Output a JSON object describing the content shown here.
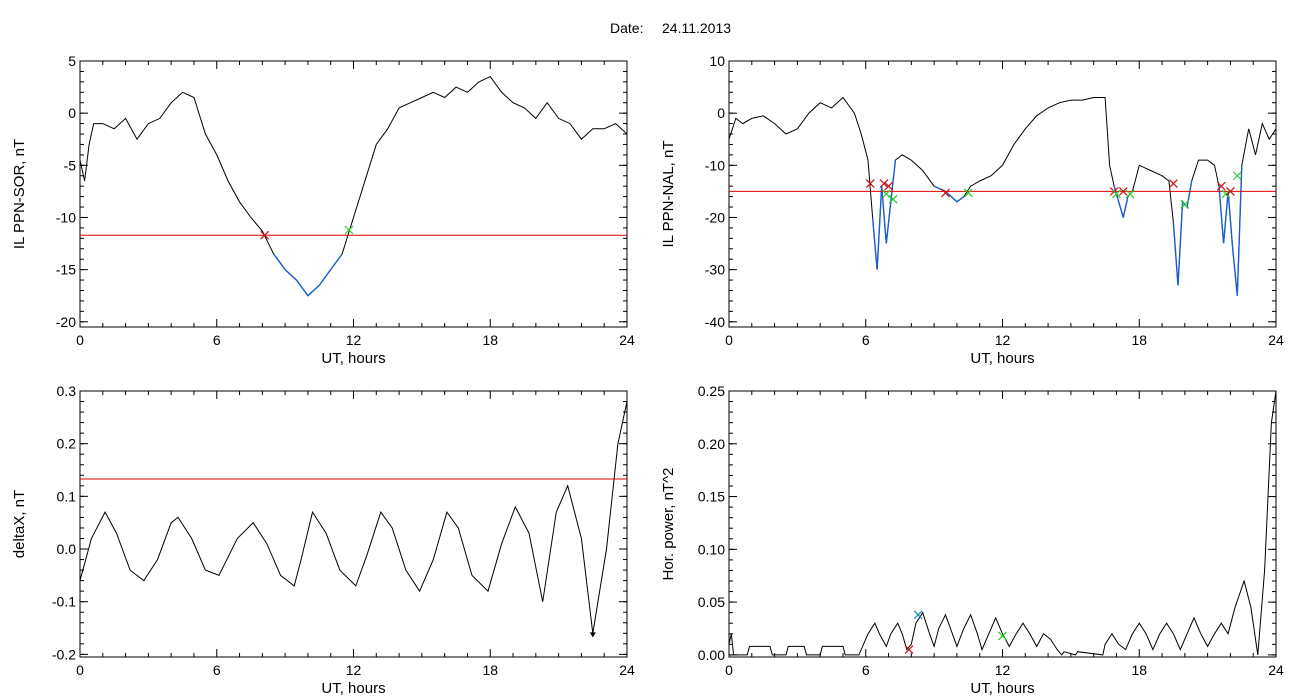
{
  "figure": {
    "title_label": "Date:",
    "title_date": "24.11.2013"
  },
  "colors": {
    "axes": "#000000",
    "trace": "#000000",
    "below_threshold": "#1a5fd0",
    "threshold_line": "#e00000",
    "marker_start": "#d01010",
    "marker_end": "#22cc22",
    "marker_peak": "#1a8cb0"
  },
  "chart_data": [
    {
      "id": "ppn-sor",
      "type": "line",
      "xlabel": "UT, hours",
      "ylabel": "IL PPN-SOR, nT",
      "xlim": [
        0,
        24
      ],
      "ylim": [
        -20.5,
        5
      ],
      "xticks": [
        0,
        6,
        12,
        18,
        24
      ],
      "yticks": [
        5,
        0,
        -5,
        -10,
        -15,
        -20
      ],
      "threshold": -11.7,
      "below_segments": [
        [
          8.1,
          11.8
        ]
      ],
      "x": [
        0,
        0.2,
        0.4,
        0.6,
        1.0,
        1.5,
        2.0,
        2.5,
        3.0,
        3.5,
        4.0,
        4.5,
        5.0,
        5.5,
        6.0,
        6.5,
        7.0,
        7.5,
        8.0,
        8.5,
        9.0,
        9.5,
        10.0,
        10.5,
        11.0,
        11.5,
        12.0,
        12.5,
        13.0,
        13.5,
        14.0,
        14.5,
        15.0,
        15.5,
        16.0,
        16.5,
        17.0,
        17.5,
        18.0,
        18.5,
        19.0,
        19.5,
        20.0,
        20.5,
        21.0,
        21.5,
        22.0,
        22.5,
        23.0,
        23.5,
        24.0
      ],
      "y": [
        -4.5,
        -6.5,
        -3.0,
        -1.0,
        -1.0,
        -1.5,
        -0.5,
        -2.5,
        -1.0,
        -0.5,
        1.0,
        2.0,
        1.5,
        -2.0,
        -4.0,
        -6.5,
        -8.5,
        -10.0,
        -11.3,
        -13.5,
        -15.0,
        -16.0,
        -17.5,
        -16.5,
        -15.0,
        -13.5,
        -10.0,
        -6.5,
        -3.0,
        -1.5,
        0.5,
        1.0,
        1.5,
        2.0,
        1.5,
        2.5,
        2.0,
        3.0,
        3.5,
        2.0,
        1.0,
        0.5,
        -0.5,
        1.0,
        -0.5,
        -1.0,
        -2.5,
        -1.5,
        -1.5,
        -1.0,
        -2.0
      ],
      "markers": [
        {
          "kind": "start",
          "x": 8.1,
          "y": -11.7
        },
        {
          "kind": "end",
          "x": 11.8,
          "y": -11.2
        }
      ]
    },
    {
      "id": "ppn-nal",
      "type": "line",
      "xlabel": "UT, hours",
      "ylabel": "IL PPN-NAL, nT",
      "xlim": [
        0,
        24
      ],
      "ylim": [
        -41,
        10
      ],
      "xticks": [
        0,
        6,
        12,
        18,
        24
      ],
      "yticks": [
        10,
        0,
        -10,
        -20,
        -30,
        -40
      ],
      "threshold": -15,
      "below_segments": [
        [
          6.3,
          7.3
        ],
        [
          9.0,
          10.5
        ],
        [
          16.9,
          17.7
        ],
        [
          19.4,
          20.3
        ],
        [
          21.5,
          22.5
        ]
      ],
      "x": [
        0,
        0.3,
        0.6,
        1.0,
        1.5,
        2.0,
        2.5,
        3.0,
        3.5,
        4.0,
        4.5,
        5.0,
        5.5,
        5.8,
        6.1,
        6.3,
        6.5,
        6.7,
        6.9,
        7.1,
        7.3,
        7.6,
        8.0,
        8.5,
        9.0,
        9.5,
        10.0,
        10.3,
        10.6,
        11.0,
        11.5,
        12.0,
        12.5,
        13.0,
        13.5,
        14.0,
        14.5,
        15.0,
        15.5,
        16.0,
        16.5,
        16.7,
        16.9,
        17.1,
        17.3,
        17.5,
        17.7,
        18.0,
        18.5,
        19.0,
        19.3,
        19.5,
        19.7,
        19.9,
        20.1,
        20.3,
        20.6,
        21.0,
        21.3,
        21.5,
        21.7,
        21.9,
        22.1,
        22.3,
        22.5,
        22.8,
        23.1,
        23.4,
        23.7,
        24.0
      ],
      "y": [
        -5,
        -1,
        -2,
        -1,
        -0.5,
        -2,
        -4,
        -3,
        0,
        2,
        1,
        3,
        0,
        -4,
        -9,
        -20,
        -30,
        -14,
        -25,
        -17,
        -9,
        -8,
        -9,
        -11,
        -14,
        -15,
        -17,
        -16,
        -14,
        -13,
        -12,
        -10,
        -6,
        -3,
        -0.5,
        1,
        2,
        2.5,
        2.5,
        3,
        3,
        -10,
        -14,
        -17,
        -20,
        -16,
        -15,
        -10,
        -11,
        -12,
        -13,
        -21,
        -33,
        -17,
        -18,
        -13,
        -9,
        -9,
        -10,
        -14,
        -25,
        -15,
        -26,
        -35,
        -10,
        -3,
        -8,
        -2,
        -5,
        -3
      ],
      "markers": [
        {
          "kind": "start",
          "x": 6.2,
          "y": -13.5
        },
        {
          "kind": "start",
          "x": 6.8,
          "y": -13.5
        },
        {
          "kind": "end",
          "x": 6.9,
          "y": -15.5
        },
        {
          "kind": "start",
          "x": 7.0,
          "y": -14
        },
        {
          "kind": "end",
          "x": 7.2,
          "y": -16.5
        },
        {
          "kind": "start",
          "x": 9.5,
          "y": -15.3
        },
        {
          "kind": "end",
          "x": 10.5,
          "y": -15.3
        },
        {
          "kind": "start",
          "x": 16.9,
          "y": -15
        },
        {
          "kind": "end",
          "x": 17.0,
          "y": -15.5
        },
        {
          "kind": "start",
          "x": 17.3,
          "y": -15
        },
        {
          "kind": "end",
          "x": 17.6,
          "y": -15.5
        },
        {
          "kind": "start",
          "x": 19.5,
          "y": -13.5
        },
        {
          "kind": "end",
          "x": 20.0,
          "y": -17.5
        },
        {
          "kind": "start",
          "x": 21.6,
          "y": -14
        },
        {
          "kind": "end",
          "x": 21.8,
          "y": -15.5
        },
        {
          "kind": "start",
          "x": 22.0,
          "y": -15
        },
        {
          "kind": "end",
          "x": 22.3,
          "y": -12
        }
      ]
    },
    {
      "id": "deltax",
      "type": "line",
      "xlabel": "UT, hours",
      "ylabel": "deltaX, nT",
      "xlim": [
        0,
        24
      ],
      "ylim": [
        -0.205,
        0.3
      ],
      "xticks": [
        0,
        6,
        12,
        18,
        24
      ],
      "yticks": [
        0.3,
        0.2,
        0.1,
        0.0,
        -0.1,
        -0.2
      ],
      "yticklabels": [
        "0.3",
        "0.2",
        "0.1",
        "0.0",
        "-0.1",
        "-0.2"
      ],
      "threshold": 0.133,
      "x": [
        0,
        0.5,
        1.1,
        1.6,
        2.2,
        2.8,
        3.4,
        4.0,
        4.3,
        4.9,
        5.5,
        6.1,
        6.9,
        7.6,
        8.2,
        8.8,
        9.4,
        9.7,
        10.2,
        10.8,
        11.4,
        12.1,
        12.6,
        13.2,
        13.7,
        14.3,
        14.9,
        15.5,
        16.1,
        16.6,
        17.2,
        17.9,
        18.5,
        19.1,
        19.7,
        20.3,
        20.9,
        21.4,
        22.0,
        22.5,
        23.1,
        23.6,
        24.0
      ],
      "y": [
        -0.06,
        0.02,
        0.07,
        0.03,
        -0.04,
        -0.06,
        -0.02,
        0.05,
        0.06,
        0.02,
        -0.04,
        -0.05,
        0.02,
        0.05,
        0.01,
        -0.05,
        -0.07,
        -0.02,
        0.07,
        0.03,
        -0.04,
        -0.07,
        -0.01,
        0.07,
        0.04,
        -0.04,
        -0.08,
        -0.02,
        0.07,
        0.04,
        -0.05,
        -0.08,
        0.01,
        0.08,
        0.03,
        -0.1,
        0.07,
        0.12,
        0.02,
        -0.16,
        0.0,
        0.2,
        0.28
      ],
      "markers": [
        {
          "kind": "peak",
          "x": 22.5,
          "y": -0.162
        }
      ]
    },
    {
      "id": "hor-power",
      "type": "line",
      "xlabel": "UT, hours",
      "ylabel": "Hor. power, nT^2",
      "xlim": [
        0,
        24
      ],
      "ylim": [
        -0.002,
        0.25
      ],
      "xticks": [
        0,
        6,
        12,
        18,
        24
      ],
      "yticks": [
        0.25,
        0.2,
        0.15,
        0.1,
        0.05,
        0.0
      ],
      "yticklabels": [
        "0.25",
        "0.20",
        "0.15",
        "0.10",
        "0.05",
        "0.00"
      ],
      "x": [
        0,
        0.1,
        0.2,
        0.8,
        0.9,
        1.8,
        1.9,
        2.5,
        2.6,
        3.3,
        3.4,
        4.0,
        4.1,
        5.0,
        5.1,
        5.7,
        5.9,
        6.1,
        6.4,
        6.6,
        6.9,
        7.1,
        7.4,
        7.6,
        7.8,
        8.0,
        8.2,
        8.5,
        8.8,
        9.0,
        9.2,
        9.5,
        9.8,
        10.0,
        10.3,
        10.6,
        10.9,
        11.1,
        11.4,
        11.7,
        12.0,
        12.3,
        12.6,
        12.9,
        13.2,
        13.5,
        13.8,
        14.1,
        14.4,
        14.6,
        14.7,
        15.2,
        15.3,
        16.4,
        16.5,
        16.8,
        17.1,
        17.4,
        17.7,
        18.0,
        18.3,
        18.6,
        18.9,
        19.2,
        19.5,
        19.8,
        20.1,
        20.4,
        20.7,
        21.0,
        21.3,
        21.6,
        21.9,
        22.2,
        22.6,
        22.9,
        23.2,
        23.5,
        23.8,
        24.0
      ],
      "y": [
        0.01,
        0.02,
        0.0,
        0.0,
        0.008,
        0.008,
        0.0,
        0.0,
        0.008,
        0.008,
        0.0,
        0.0,
        0.008,
        0.008,
        0.0,
        0.0,
        0.01,
        0.02,
        0.03,
        0.02,
        0.008,
        0.02,
        0.03,
        0.02,
        0.005,
        0.01,
        0.03,
        0.04,
        0.02,
        0.008,
        0.025,
        0.038,
        0.02,
        0.008,
        0.025,
        0.038,
        0.02,
        0.005,
        0.02,
        0.035,
        0.02,
        0.008,
        0.02,
        0.03,
        0.02,
        0.008,
        0.02,
        0.015,
        0.005,
        0.0,
        0.003,
        0.0,
        0.003,
        0.0,
        0.01,
        0.02,
        0.01,
        0.005,
        0.02,
        0.03,
        0.02,
        0.005,
        0.02,
        0.03,
        0.02,
        0.005,
        0.02,
        0.035,
        0.02,
        0.008,
        0.02,
        0.03,
        0.02,
        0.045,
        0.07,
        0.045,
        0.0,
        0.08,
        0.22,
        0.25
      ],
      "markers": [
        {
          "kind": "start",
          "x": 7.9,
          "y": 0.005
        },
        {
          "kind": "peak",
          "x": 8.3,
          "y": 0.038
        },
        {
          "kind": "end",
          "x": 12.0,
          "y": 0.018
        }
      ]
    }
  ]
}
